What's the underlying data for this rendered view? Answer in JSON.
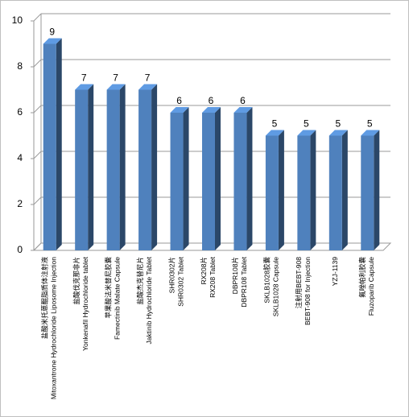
{
  "chart_data": {
    "type": "bar3d",
    "categories": [
      [
        "盐酸米托蒽醌脂质体注射液",
        "Mitoxantrone Hydrochloride Liposome Injection"
      ],
      [
        "盐酸伐克那非片",
        "Yonkenafil Hydrochloride tablet"
      ],
      [
        "苹果酸法米替尼胶囊",
        "Famectinib Malate Capsule"
      ],
      [
        "盐酸杰克替尼片",
        "Jaktinib Hydrochloride Tablet"
      ],
      [
        "SHR0302片",
        "SHR0302 Tablet"
      ],
      [
        "RX208片",
        "RX208 Tablet"
      ],
      [
        "DBPR108片",
        "DBPR108 Tablet"
      ],
      [
        "SKLB1028胶囊",
        "SKLB1028 Capsule"
      ],
      [
        "注射用BEBT-908",
        "BEBT-908 for Injection"
      ],
      [
        "YZJ-1139"
      ],
      [
        "氟唑帕利胶囊",
        "Fluzoparib Capsule"
      ]
    ],
    "values": [
      9,
      7,
      7,
      7,
      6,
      6,
      6,
      5,
      5,
      5,
      5
    ],
    "color": "#4f81bd",
    "ylim": [
      0,
      10
    ],
    "yticks": [
      0,
      2,
      4,
      6,
      8,
      10
    ],
    "grid": true
  }
}
